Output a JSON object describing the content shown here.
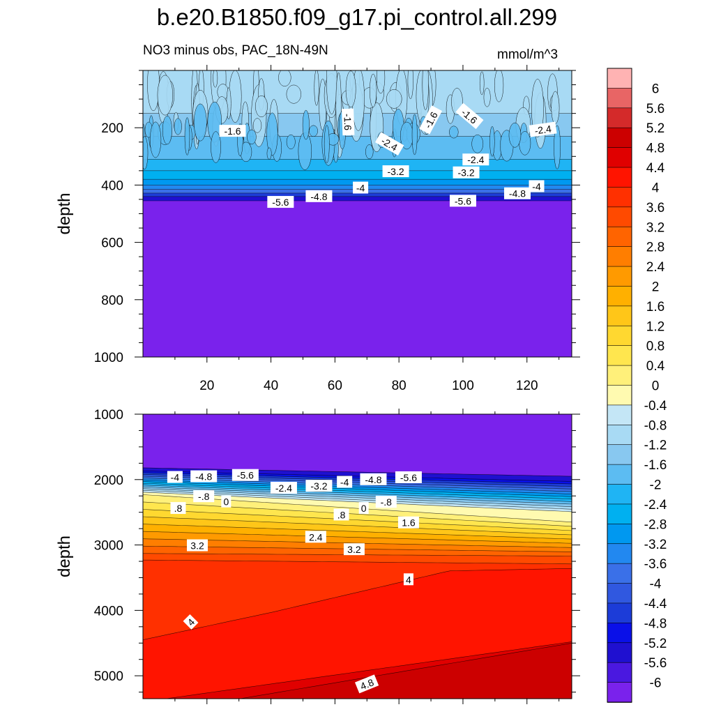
{
  "title": "b.e20.B1850.f09_g17.pi_control.all.299",
  "subtitle_left": "NO3 minus obs, PAC_18N-49N",
  "units": "mmol/m^3",
  "chart_data": [
    {
      "type": "contour",
      "panel": "upper",
      "ylabel": "depth",
      "xlabel": "",
      "xlim": [
        0,
        134
      ],
      "ylim": [
        0,
        1000
      ],
      "x_ticks": [
        20,
        40,
        60,
        80,
        100,
        120
      ],
      "y_ticks": [
        200,
        400,
        600,
        800,
        1000
      ],
      "y_reversed": true,
      "bands": [
        {
          "top": 0,
          "bottom": 150,
          "value": -1.2
        },
        {
          "top": 150,
          "bottom": 230,
          "value": -1.6
        },
        {
          "top": 230,
          "bottom": 310,
          "value": -2.0
        },
        {
          "top": 310,
          "bottom": 350,
          "value": -2.4
        },
        {
          "top": 350,
          "bottom": 380,
          "value": -2.8
        },
        {
          "top": 380,
          "bottom": 400,
          "value": -3.2
        },
        {
          "top": 400,
          "bottom": 415,
          "value": -3.6
        },
        {
          "top": 415,
          "bottom": 428,
          "value": -4.0
        },
        {
          "top": 428,
          "bottom": 440,
          "value": -4.8
        },
        {
          "top": 440,
          "bottom": 455,
          "value": -5.6
        },
        {
          "top": 455,
          "bottom": 1000,
          "value": -6.4
        }
      ],
      "contour_labels": [
        {
          "text": "-1.6",
          "x": 28,
          "y": 212,
          "angle": 0
        },
        {
          "text": "-1.6",
          "x": 64,
          "y": 180,
          "angle": 88
        },
        {
          "text": "-1.6",
          "x": 90,
          "y": 173,
          "angle": -62
        },
        {
          "text": "-1.6",
          "x": 102,
          "y": 160,
          "angle": 40
        },
        {
          "text": "-2.4",
          "x": 125,
          "y": 207,
          "angle": -8
        },
        {
          "text": "-2.4",
          "x": 104,
          "y": 312,
          "angle": 0
        },
        {
          "text": "-2.4",
          "x": 77,
          "y": 257,
          "angle": 30
        },
        {
          "text": "-3.2",
          "x": 79,
          "y": 353,
          "angle": 0
        },
        {
          "text": "-3.2",
          "x": 101,
          "y": 357,
          "angle": 0
        },
        {
          "text": "-4",
          "x": 68,
          "y": 410,
          "angle": 0
        },
        {
          "text": "-4",
          "x": 123,
          "y": 405,
          "angle": 0
        },
        {
          "text": "-4.8",
          "x": 55,
          "y": 440,
          "angle": 0
        },
        {
          "text": "-4.8",
          "x": 117,
          "y": 430,
          "angle": 0
        },
        {
          "text": "-5.6",
          "x": 43,
          "y": 460,
          "angle": 0
        },
        {
          "text": "-5.6",
          "x": 100,
          "y": 456,
          "angle": 0
        }
      ]
    },
    {
      "type": "contour",
      "panel": "lower",
      "ylabel": "depth",
      "xlabel": "",
      "xlim": [
        0,
        134
      ],
      "ylim": [
        1000,
        5350
      ],
      "x_ticks": [
        20,
        40,
        60,
        80,
        100,
        120
      ],
      "y_ticks": [
        1000,
        2000,
        3000,
        4000,
        5000
      ],
      "y_reversed": true,
      "contour_labels": [
        {
          "text": "-4",
          "x": 10,
          "y": 1965,
          "angle": 0
        },
        {
          "text": "-4.8",
          "x": 19,
          "y": 1955,
          "angle": 0
        },
        {
          "text": "-5.6",
          "x": 32,
          "y": 1935,
          "angle": 0
        },
        {
          "text": "-5.6",
          "x": 83,
          "y": 1970,
          "angle": 0
        },
        {
          "text": "-4.8",
          "x": 72,
          "y": 2000,
          "angle": 0
        },
        {
          "text": "-4",
          "x": 63,
          "y": 2040,
          "angle": 0
        },
        {
          "text": "-3.2",
          "x": 55,
          "y": 2100,
          "angle": 0
        },
        {
          "text": "-2.4",
          "x": 44,
          "y": 2130,
          "angle": 0
        },
        {
          "text": "-.8",
          "x": 19,
          "y": 2260,
          "angle": 0
        },
        {
          "text": "0",
          "x": 26,
          "y": 2340,
          "angle": 0
        },
        {
          "text": ".8",
          "x": 11,
          "y": 2440,
          "angle": 0
        },
        {
          "text": "0",
          "x": 69,
          "y": 2440,
          "angle": 0
        },
        {
          "text": "-.8",
          "x": 76,
          "y": 2345,
          "angle": 0
        },
        {
          "text": ".8",
          "x": 62,
          "y": 2540,
          "angle": 0
        },
        {
          "text": "1.6",
          "x": 83,
          "y": 2660,
          "angle": 0
        },
        {
          "text": "2.4",
          "x": 54,
          "y": 2880,
          "angle": 0
        },
        {
          "text": "3.2",
          "x": 17,
          "y": 3010,
          "angle": 0
        },
        {
          "text": "3.2",
          "x": 66,
          "y": 3070,
          "angle": 0
        },
        {
          "text": "4",
          "x": 83,
          "y": 3530,
          "angle": 0
        },
        {
          "text": "4",
          "x": 15,
          "y": 4180,
          "angle": -45
        },
        {
          "text": "4.8",
          "x": 70,
          "y": 5130,
          "angle": -22
        }
      ]
    }
  ],
  "colorbar": {
    "labels": [
      "6",
      "5.6",
      "5.2",
      "4.8",
      "4.4",
      "4",
      "3.6",
      "3.2",
      "2.8",
      "2.4",
      "2",
      "1.6",
      "1.2",
      "0.8",
      "0.4",
      "0",
      "-0.4",
      "-0.8",
      "-1.2",
      "-1.6",
      "-2",
      "-2.4",
      "-2.8",
      "-3.2",
      "-3.6",
      "-4",
      "-4.4",
      "-4.8",
      "-5.2",
      "-5.6",
      "-6"
    ],
    "colors": [
      "#ffb3b3",
      "#e86565",
      "#d42a2a",
      "#cc0000",
      "#e00000",
      "#ff1400",
      "#ff3000",
      "#ff4a00",
      "#ff6400",
      "#ff7e00",
      "#ff9a00",
      "#ffb000",
      "#ffc618",
      "#ffd830",
      "#ffe64e",
      "#fff07a",
      "#fffab0",
      "#c4e6f6",
      "#a8daf4",
      "#88c8f0",
      "#5cbcf2",
      "#1fb4f4",
      "#00b0f0",
      "#0098f0",
      "#2288f0",
      "#3a70e8",
      "#3058e0",
      "#1c3cd8",
      "#0a10e8",
      "#1f10d0",
      "#4a18e0",
      "#7a22ec"
    ]
  }
}
